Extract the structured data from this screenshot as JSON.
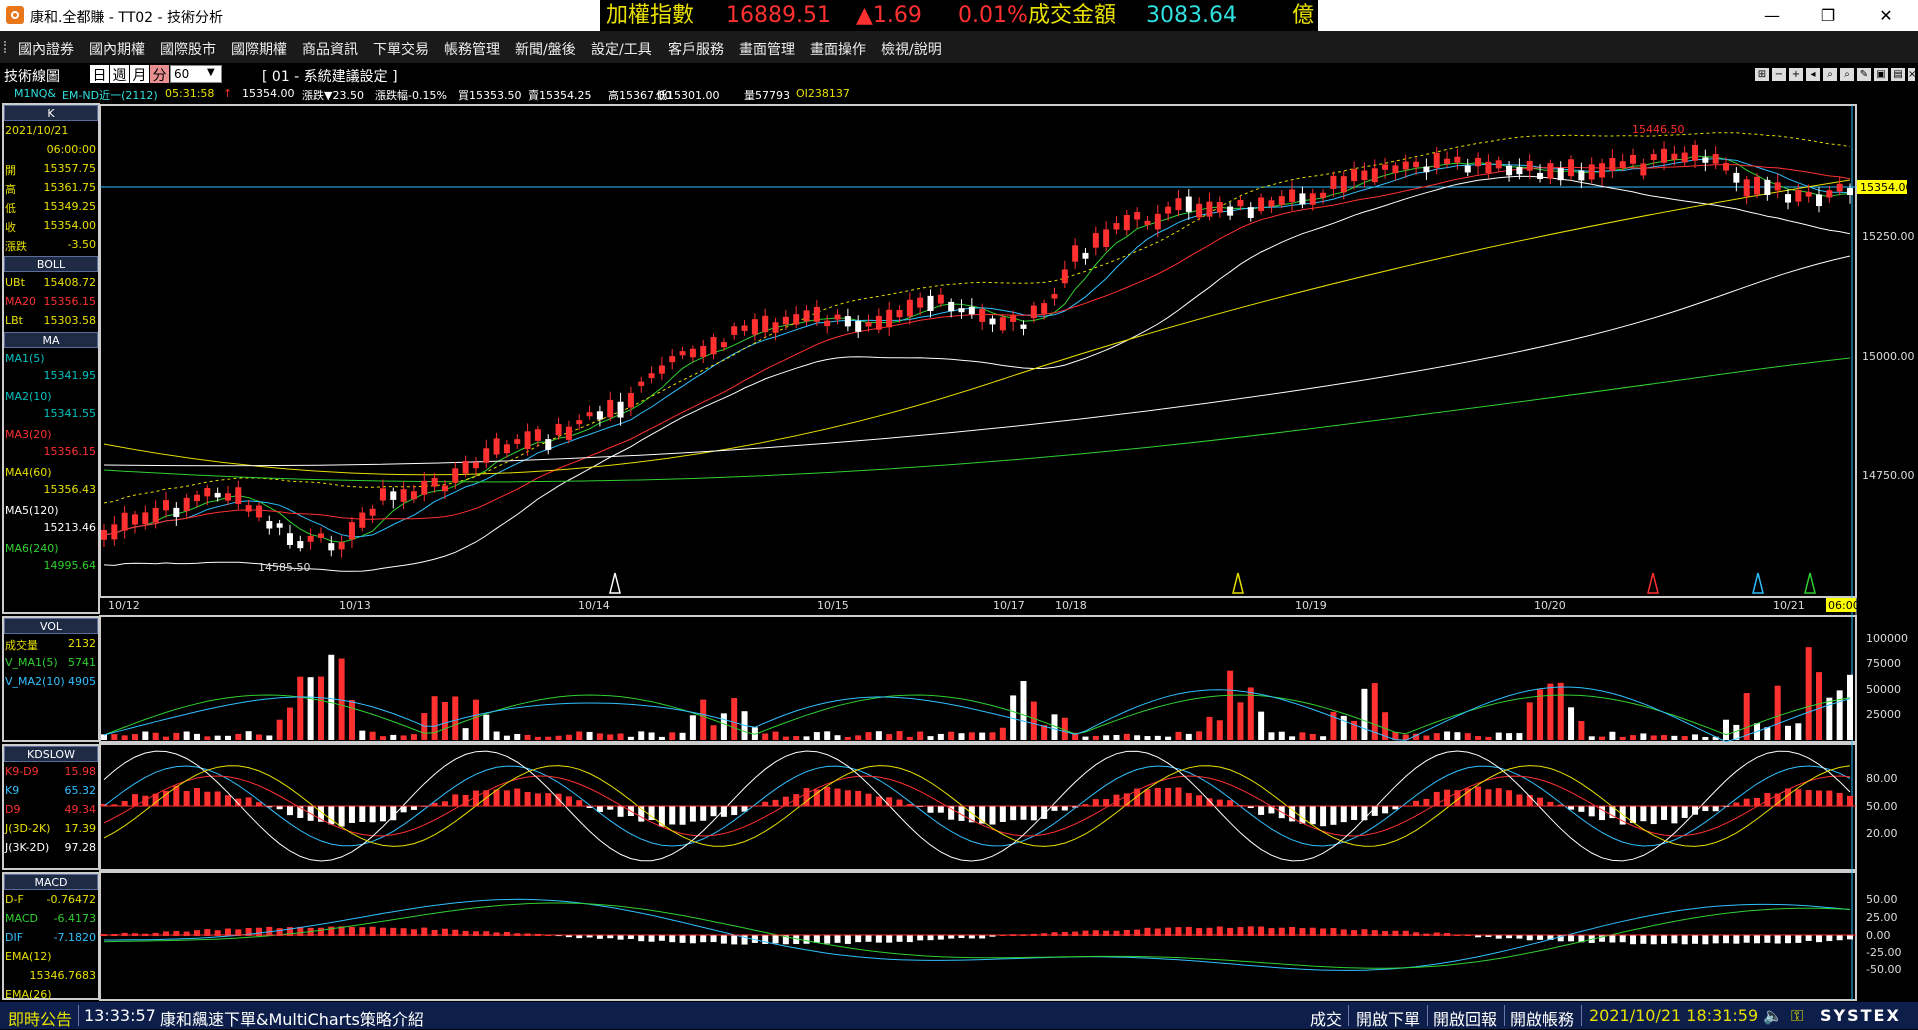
{
  "window": {
    "title": "康和.全都賺 - TT02 - 技術分析",
    "ticker": {
      "name": "加權指數",
      "price": "16889.51",
      "change": "▲1.69",
      "pct": "0.01%",
      "vol_label": "成交金額",
      "vol_value": "3083.64",
      "unit": "億"
    },
    "controls": {
      "minimize": "—",
      "restore": "❐",
      "close": "✕"
    }
  },
  "menu": [
    "國內證券",
    "國內期權",
    "國際股市",
    "國際期權",
    "商品資訊",
    "下單交易",
    "帳務管理",
    "新聞/盤後",
    "設定/工具",
    "客戶服務",
    "畫面管理",
    "畫面操作",
    "檢視/說明"
  ],
  "toolbar": {
    "title": "技術線圖",
    "periods": [
      "日",
      "週",
      "月",
      "分"
    ],
    "active_period": "分",
    "interval": "60",
    "setting": "[ 01 - 系統建議設定 ]"
  },
  "infoline": {
    "symbol": "M1NQ&",
    "name": "EM-ND近一(2112)",
    "time": "05:31:58",
    "arrow": "↑",
    "last": "15354.00",
    "change_label": "漲跌▼23.50",
    "pct_label": "漲跌幅-0.15%",
    "bid": "買15353.50",
    "ask": "賣15354.25",
    "high": "高15367.00",
    "low": "低15301.00",
    "volume": "量57793",
    "oi": "OI238137"
  },
  "side": {
    "k_head": "K",
    "date": "2021/10/21",
    "time": "06:00:00",
    "ohlc": [
      {
        "label": "開",
        "value": "15357.75"
      },
      {
        "label": "高",
        "value": "15361.75"
      },
      {
        "label": "低",
        "value": "15349.25"
      },
      {
        "label": "收",
        "value": "15354.00"
      },
      {
        "label": "漲跌",
        "value": "-3.50"
      }
    ],
    "boll_head": "BOLL",
    "boll": [
      {
        "label": "UBt",
        "value": "15408.72"
      },
      {
        "label": "MA20",
        "value": "15356.15"
      },
      {
        "label": "LBt",
        "value": "15303.58"
      }
    ],
    "ma_head": "MA",
    "ma": [
      {
        "label": "MA1(5)",
        "value": "15341.95",
        "color": "#00c0c0"
      },
      {
        "label": "MA2(10)",
        "value": "15341.55",
        "color": "#00c0c0"
      },
      {
        "label": "MA3(20)",
        "value": "15356.15",
        "color": "#ff3030"
      },
      {
        "label": "MA4(60)",
        "value": "15356.43",
        "color": "#e8e000"
      },
      {
        "label": "MA5(120)",
        "value": "15213.46",
        "color": "#ffffff"
      },
      {
        "label": "MA6(240)",
        "value": "14995.64",
        "color": "#30d030"
      }
    ],
    "vol_head": "VOL",
    "vol": [
      {
        "label": "成交量",
        "value": "2132",
        "color": "#e8e000"
      },
      {
        "label": "V_MA1(5)",
        "value": "5741",
        "color": "#30d030"
      },
      {
        "label": "V_MA2(10)",
        "value": "4905",
        "color": "#30c0ff"
      }
    ],
    "kd_head": "KDSLOW",
    "kd": [
      {
        "label": "K9-D9",
        "value": "15.98",
        "color": "#ff3030"
      },
      {
        "label": "K9",
        "value": "65.32",
        "color": "#30c0ff"
      },
      {
        "label": "D9",
        "value": "49.34",
        "color": "#ff3030"
      },
      {
        "label": "J(3D-2K)",
        "value": "17.39",
        "color": "#e8e000"
      },
      {
        "label": "J(3K-2D)",
        "value": "97.28",
        "color": "#ffffff"
      }
    ],
    "macd_head": "MACD",
    "macd": [
      {
        "label": "D-F",
        "value": "-0.76472",
        "color": "#e8e000"
      },
      {
        "label": "MACD",
        "value": "-6.4173",
        "color": "#30d030"
      },
      {
        "label": "DIF",
        "value": "-7.1820",
        "color": "#30c0ff"
      },
      {
        "label": "EMA(12)",
        "value": "",
        "color": "#e8e000"
      },
      {
        "label": "",
        "value": "15346.7683",
        "color": "#e8e000"
      },
      {
        "label": "EMA(26)",
        "value": "",
        "color": "#e8e000"
      }
    ]
  },
  "price_axis": [
    "15250.00",
    "15000.00",
    "14750.00"
  ],
  "current_price_tag": "15354.00",
  "annotations": {
    "high": "15446.50",
    "low": "14585.50"
  },
  "date_axis": [
    "10/12",
    "10/13",
    "10/14",
    "10/15",
    "10/17",
    "10/18",
    "10/19",
    "10/20",
    "10/21"
  ],
  "time_tag": "06:00",
  "vol_axis": [
    "100000",
    "75000",
    "50000",
    "25000"
  ],
  "kd_axis": [
    "80.00",
    "50.00",
    "20.00"
  ],
  "macd_axis": [
    "50.00",
    "25.00",
    "0.00",
    "-25.00",
    "-50.00"
  ],
  "status": {
    "label": "即時公告",
    "time": "13:33:57",
    "message": "康和飆速下單&MultiCharts策略介紹",
    "buttons": [
      "成交",
      "開啟下單",
      "開啟回報",
      "開啟帳務"
    ],
    "datetime": "2021/10/21 18:31:59",
    "brand": "SYSTEX"
  }
}
